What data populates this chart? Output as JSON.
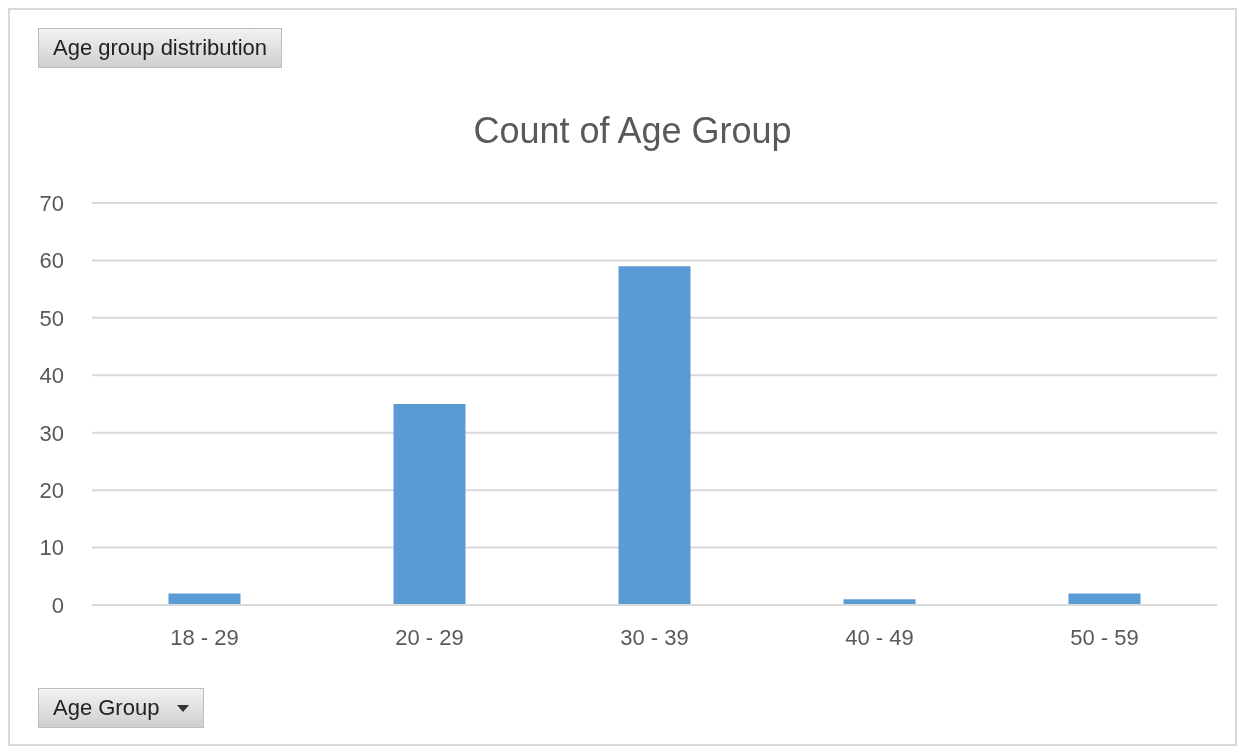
{
  "chart_data": {
    "type": "bar",
    "title": "Count of Age Group",
    "categories": [
      "18 - 29",
      "20 - 29",
      "30 - 39",
      "40 - 49",
      "50 - 59"
    ],
    "values": [
      2,
      35,
      59,
      1,
      2
    ],
    "color": "#5b9bd5",
    "ylim": [
      0,
      70
    ],
    "yticks": [
      0,
      10,
      20,
      30,
      40,
      50,
      60,
      70
    ],
    "grid": "y",
    "annotations": [
      "Age group distribution",
      "Age Group"
    ]
  }
}
